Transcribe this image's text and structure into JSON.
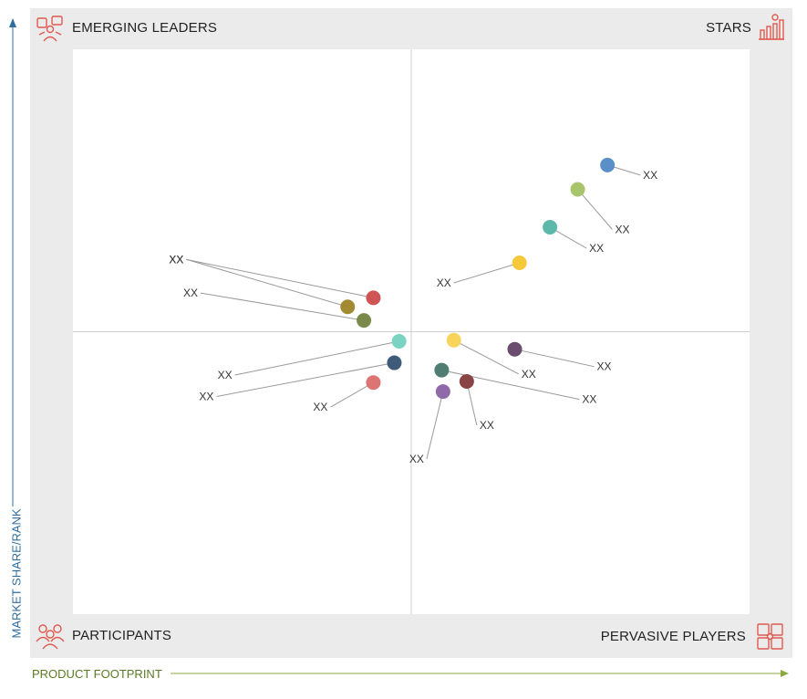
{
  "quadrants": {
    "top_left": "EMERGING LEADERS",
    "top_right": "STARS",
    "bottom_left": "PARTICIPANTS",
    "bottom_right": "PERVASIVE PLAYERS"
  },
  "icons": {
    "top_left": "emerging-leaders-icon",
    "top_right": "stars-icon",
    "bottom_left": "participants-icon",
    "bottom_right": "pervasive-players-icon"
  },
  "colors": {
    "icon": "#e05a4f",
    "y_axis": "#2f6e9e",
    "x_axis": "#8aa93d"
  },
  "chart_data": {
    "type": "scatter",
    "xlabel": "PRODUCT FOOTPRINT",
    "ylabel": "MARKET SHARE/RANK",
    "xlim": [
      0,
      100
    ],
    "ylim": [
      0,
      100
    ],
    "grid": false,
    "points": [
      {
        "label": "XX",
        "x": 79.0,
        "y": 79.5,
        "color": "#5b8fc7"
      },
      {
        "label": "XX",
        "x": 74.6,
        "y": 75.2,
        "color": "#a9c56b"
      },
      {
        "label": "XX",
        "x": 70.5,
        "y": 68.5,
        "color": "#5cb8a8"
      },
      {
        "label": "XX",
        "x": 66.0,
        "y": 62.2,
        "color": "#f6c93b"
      },
      {
        "label": "XX",
        "x": 44.4,
        "y": 56.0,
        "color": "#cf5555"
      },
      {
        "label": "XX",
        "x": 40.6,
        "y": 54.4,
        "color": "#a38a32"
      },
      {
        "label": "XX",
        "x": 43.0,
        "y": 52.0,
        "color": "#7a8a4a"
      },
      {
        "label": "XX",
        "x": 48.2,
        "y": 48.3,
        "color": "#7bd4c1"
      },
      {
        "label": "XX",
        "x": 56.3,
        "y": 48.5,
        "color": "#f8d45a"
      },
      {
        "label": "XX",
        "x": 65.3,
        "y": 46.9,
        "color": "#6a4c6e"
      },
      {
        "label": "XX",
        "x": 47.5,
        "y": 44.5,
        "color": "#3f5b7a"
      },
      {
        "label": "XX",
        "x": 54.5,
        "y": 43.2,
        "color": "#4f7d71"
      },
      {
        "label": "XX",
        "x": 44.4,
        "y": 41.0,
        "color": "#dc7474"
      },
      {
        "label": "XX",
        "x": 58.2,
        "y": 41.2,
        "color": "#8b4444"
      },
      {
        "label": "XX",
        "x": 54.7,
        "y": 39.4,
        "color": "#8e6aa8"
      }
    ]
  }
}
